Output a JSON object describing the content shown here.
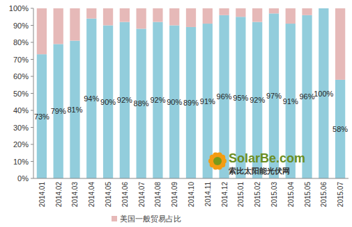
{
  "chart_data": {
    "type": "bar",
    "stacked": true,
    "grid": false,
    "legend": "bottom",
    "categories": [
      "2014.01",
      "2014.02",
      "2014.03",
      "2014.04",
      "2014.05",
      "2014.06",
      "2014.07",
      "2014.08",
      "2014.09",
      "2014.10",
      "2014.11",
      "2014.12",
      "2015.01",
      "2015.02",
      "2015.03",
      "2015.04",
      "2015.05",
      "2015.06",
      "2015.07"
    ],
    "series": [
      {
        "color": "#92cddc",
        "data_labels": true,
        "values": [
          73,
          79,
          81,
          94,
          90,
          92,
          88,
          92,
          90,
          89,
          91,
          96,
          95,
          92,
          97,
          91,
          96,
          100,
          58
        ],
        "value_labels": [
          "73%",
          "79%",
          "81%",
          "94%",
          "90%",
          "92%",
          "88%",
          "92%",
          "90%",
          "89%",
          "91%",
          "96%",
          "95%",
          "92%",
          "97%",
          "91%",
          "96%",
          "100%",
          "58%"
        ]
      },
      {
        "name": "美国一般贸易占比",
        "color": "#e6b9b8",
        "values": [
          27,
          21,
          19,
          6,
          10,
          8,
          12,
          8,
          10,
          11,
          9,
          4,
          5,
          8,
          3,
          9,
          4,
          0,
          42
        ]
      }
    ],
    "ylim": [
      0,
      100
    ],
    "yticks": [
      {
        "value": 0,
        "label": "0%"
      },
      {
        "value": 10,
        "label": "10%"
      },
      {
        "value": 20,
        "label": "20%"
      },
      {
        "value": 30,
        "label": "30%"
      },
      {
        "value": 40,
        "label": "40%"
      },
      {
        "value": 50,
        "label": "50%"
      },
      {
        "value": 60,
        "label": "60%"
      },
      {
        "value": 70,
        "label": "70%"
      },
      {
        "value": 80,
        "label": "80%"
      },
      {
        "value": 90,
        "label": "90%"
      },
      {
        "value": 100,
        "label": "100%"
      }
    ],
    "annotations": [
      "SolarBe.com",
      "索比太阳能光伏网"
    ]
  }
}
